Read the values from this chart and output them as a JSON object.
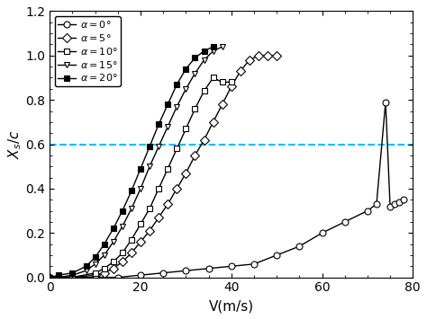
{
  "title": "",
  "xlabel": "V(m/s)",
  "ylabel": "$X_s/c$",
  "xlim": [
    0,
    80
  ],
  "ylim": [
    0,
    1.2
  ],
  "xticks": [
    0,
    20,
    40,
    60,
    80
  ],
  "yticks": [
    0,
    0.2,
    0.4,
    0.6,
    0.8,
    1.0,
    1.2
  ],
  "dashed_line_y": 0.6,
  "dashed_line_color": "#00BFFF",
  "series": [
    {
      "label": "$\\alpha = 0°$",
      "marker": "o",
      "markersize": 5,
      "markerfilled": false,
      "V": [
        0,
        5,
        10,
        15,
        20,
        25,
        30,
        35,
        40,
        45,
        50,
        55,
        60,
        65,
        70,
        72,
        74,
        75,
        76,
        77,
        78
      ],
      "Xs": [
        0,
        0.0,
        0.0,
        0.0,
        0.01,
        0.02,
        0.03,
        0.04,
        0.05,
        0.06,
        0.1,
        0.14,
        0.2,
        0.25,
        0.3,
        0.33,
        0.79,
        0.32,
        0.33,
        0.34,
        0.35
      ]
    },
    {
      "label": "$\\alpha = 5°$",
      "marker": "D",
      "markersize": 5,
      "markerfilled": false,
      "V": [
        0,
        5,
        10,
        12,
        14,
        16,
        18,
        20,
        22,
        24,
        26,
        28,
        30,
        32,
        34,
        36,
        38,
        40,
        42,
        44,
        46,
        48,
        50
      ],
      "Xs": [
        0,
        0.0,
        0.01,
        0.02,
        0.04,
        0.07,
        0.11,
        0.16,
        0.21,
        0.27,
        0.33,
        0.4,
        0.47,
        0.55,
        0.62,
        0.7,
        0.78,
        0.86,
        0.93,
        0.98,
        1.0,
        1.0,
        1.0
      ]
    },
    {
      "label": "$\\alpha = 10°$",
      "marker": "s",
      "markersize": 5,
      "markerfilled": false,
      "V": [
        0,
        5,
        10,
        12,
        14,
        16,
        18,
        20,
        22,
        24,
        26,
        28,
        30,
        32,
        34,
        36,
        38,
        40
      ],
      "Xs": [
        0,
        0.0,
        0.02,
        0.04,
        0.07,
        0.11,
        0.17,
        0.24,
        0.31,
        0.4,
        0.49,
        0.58,
        0.67,
        0.76,
        0.84,
        0.9,
        0.88,
        0.88
      ]
    },
    {
      "label": "$\\alpha = 15°$",
      "marker": "v",
      "markersize": 5,
      "markerfilled": false,
      "V": [
        0,
        2,
        5,
        8,
        10,
        12,
        14,
        16,
        18,
        20,
        22,
        24,
        26,
        28,
        30,
        32,
        34,
        36,
        38
      ],
      "Xs": [
        0,
        0.0,
        0.01,
        0.03,
        0.06,
        0.1,
        0.16,
        0.23,
        0.31,
        0.4,
        0.5,
        0.59,
        0.68,
        0.77,
        0.85,
        0.92,
        0.98,
        1.02,
        1.04
      ]
    },
    {
      "label": "$\\alpha = 20°$",
      "marker": "s",
      "markersize": 4,
      "markerfilled": true,
      "V": [
        0,
        2,
        5,
        8,
        10,
        12,
        14,
        16,
        18,
        20,
        22,
        24,
        26,
        28,
        30,
        32,
        34,
        36
      ],
      "Xs": [
        0,
        0.01,
        0.02,
        0.05,
        0.09,
        0.15,
        0.22,
        0.3,
        0.39,
        0.49,
        0.59,
        0.69,
        0.78,
        0.87,
        0.94,
        0.99,
        1.02,
        1.04
      ]
    }
  ]
}
